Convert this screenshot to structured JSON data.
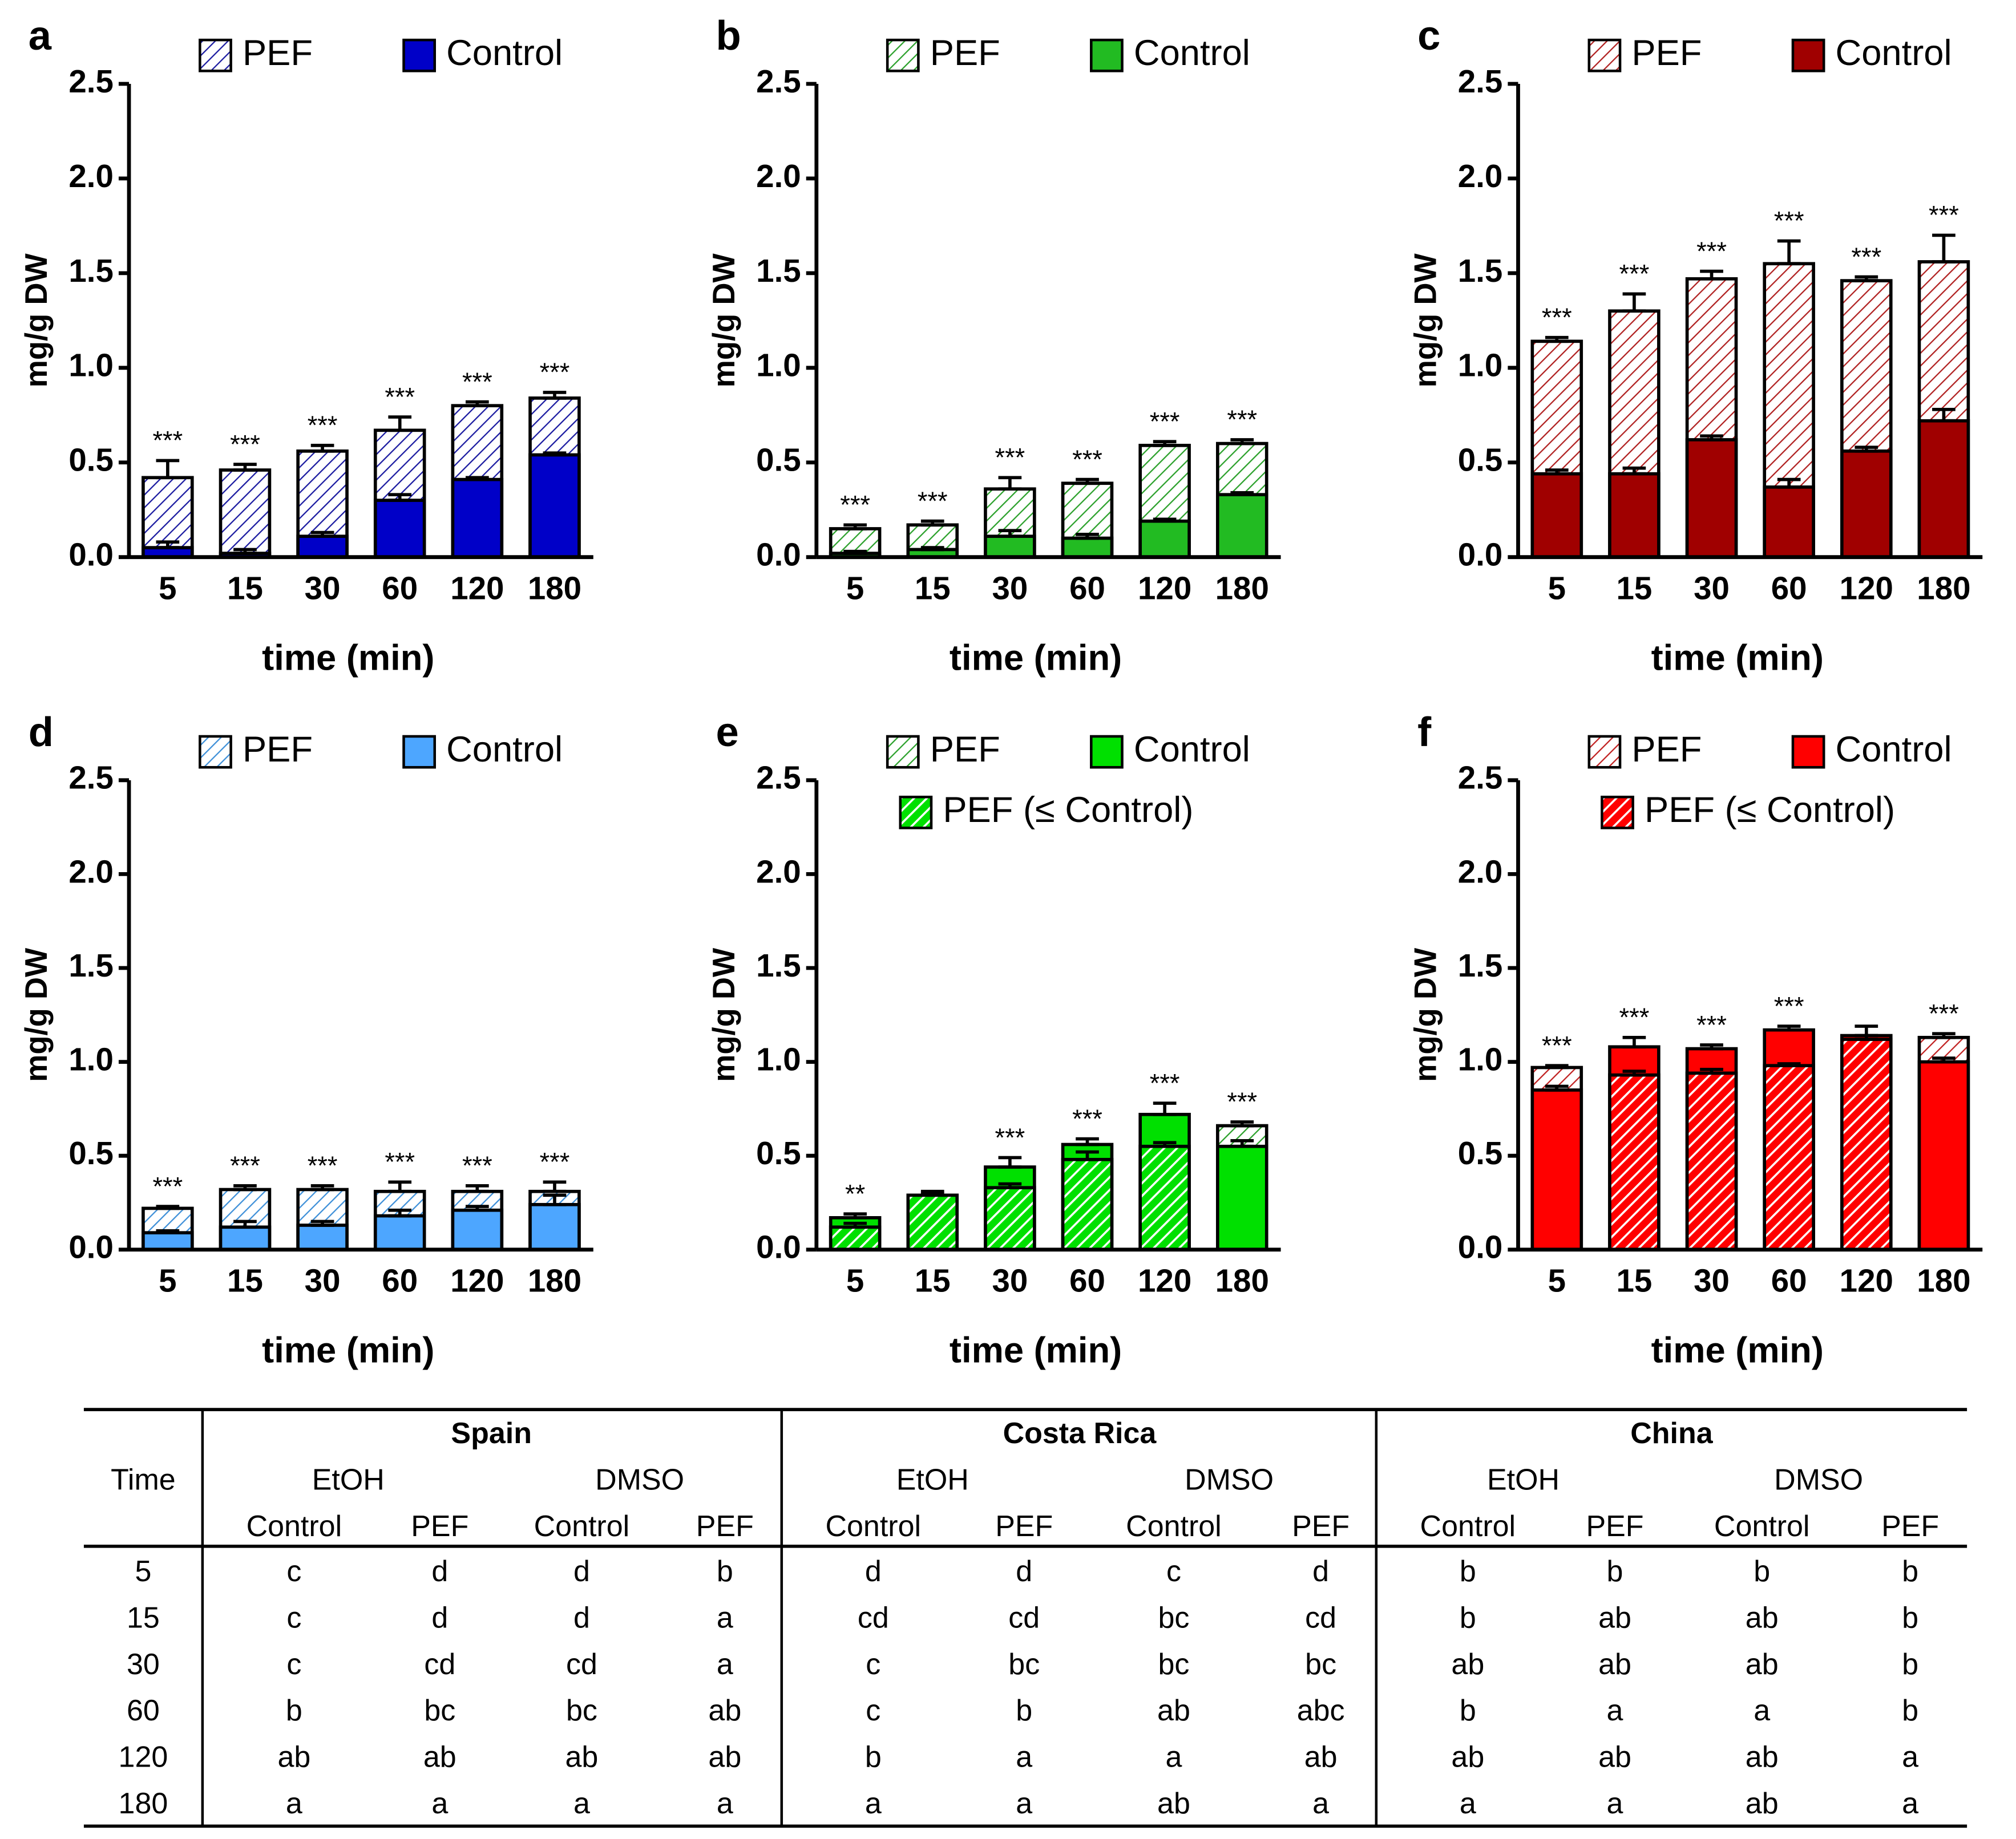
{
  "chart_data": [
    {
      "type": "bar",
      "label": "a",
      "ylabel": "mg/g DW",
      "xlabel": "time (min)",
      "categories": [
        "5",
        "15",
        "30",
        "60",
        "120",
        "180"
      ],
      "ylim": [
        0,
        2.5
      ],
      "yticks": [
        {
          "value": 0,
          "label": "0.0"
        },
        {
          "value": 0.5,
          "label": "0.5"
        },
        {
          "value": 1,
          "label": "1.0"
        },
        {
          "value": 1.5,
          "label": "1.5"
        },
        {
          "value": 2,
          "label": "2.0"
        },
        {
          "value": 2.5,
          "label": "2.5"
        }
      ],
      "series": [
        {
          "name": "PEF",
          "color": "#1a1aa0",
          "values": [
            0.42,
            0.46,
            0.56,
            0.67,
            0.8,
            0.84
          ],
          "errors": [
            0.09,
            0.03,
            0.03,
            0.07,
            0.02,
            0.03
          ]
        },
        {
          "name": "Control",
          "color": "#0000c8",
          "values": [
            0.05,
            0.02,
            0.11,
            0.3,
            0.41,
            0.54
          ],
          "errors": [
            0.03,
            0.02,
            0.02,
            0.03,
            0.01,
            0.01
          ]
        }
      ],
      "significance": [
        "***",
        "***",
        "***",
        "***",
        "***",
        "***"
      ]
    },
    {
      "type": "bar",
      "label": "b",
      "ylabel": "mg/g DW",
      "xlabel": "time (min)",
      "categories": [
        "5",
        "15",
        "30",
        "60",
        "120",
        "180"
      ],
      "ylim": [
        0,
        2.5
      ],
      "yticks": [
        {
          "value": 0,
          "label": "0.0"
        },
        {
          "value": 0.5,
          "label": "0.5"
        },
        {
          "value": 1,
          "label": "1.0"
        },
        {
          "value": 1.5,
          "label": "1.5"
        },
        {
          "value": 2,
          "label": "2.0"
        },
        {
          "value": 2.5,
          "label": "2.5"
        }
      ],
      "series": [
        {
          "name": "PEF",
          "color": "#2aa02a",
          "values": [
            0.15,
            0.17,
            0.36,
            0.39,
            0.59,
            0.6
          ],
          "errors": [
            0.02,
            0.02,
            0.06,
            0.02,
            0.02,
            0.02
          ]
        },
        {
          "name": "Control",
          "color": "#22bb22",
          "values": [
            0.02,
            0.04,
            0.11,
            0.1,
            0.19,
            0.33
          ],
          "errors": [
            0.01,
            0.01,
            0.03,
            0.02,
            0.01,
            0.01
          ]
        }
      ],
      "significance": [
        "***",
        "***",
        "***",
        "***",
        "***",
        "***"
      ]
    },
    {
      "type": "bar",
      "label": "c",
      "ylabel": "mg/g DW",
      "xlabel": "time (min)",
      "categories": [
        "5",
        "15",
        "30",
        "60",
        "120",
        "180"
      ],
      "ylim": [
        0,
        2.5
      ],
      "yticks": [
        {
          "value": 0,
          "label": "0.0"
        },
        {
          "value": 0.5,
          "label": "0.5"
        },
        {
          "value": 1,
          "label": "1.0"
        },
        {
          "value": 1.5,
          "label": "1.5"
        },
        {
          "value": 2,
          "label": "2.0"
        },
        {
          "value": 2.5,
          "label": "2.5"
        }
      ],
      "series": [
        {
          "name": "PEF",
          "color": "#b02020",
          "values": [
            1.14,
            1.3,
            1.47,
            1.55,
            1.46,
            1.56
          ],
          "errors": [
            0.02,
            0.09,
            0.04,
            0.12,
            0.02,
            0.14
          ]
        },
        {
          "name": "Control",
          "color": "#a00000",
          "values": [
            0.44,
            0.44,
            0.62,
            0.37,
            0.56,
            0.72
          ],
          "errors": [
            0.02,
            0.03,
            0.02,
            0.04,
            0.02,
            0.06
          ]
        }
      ],
      "significance": [
        "***",
        "***",
        "***",
        "***",
        "***",
        "***"
      ]
    },
    {
      "type": "bar",
      "label": "d",
      "ylabel": "mg/g DW",
      "xlabel": "time (min)",
      "categories": [
        "5",
        "15",
        "30",
        "60",
        "120",
        "180"
      ],
      "ylim": [
        0,
        2.5
      ],
      "yticks": [
        {
          "value": 0,
          "label": "0.0"
        },
        {
          "value": 0.5,
          "label": "0.5"
        },
        {
          "value": 1,
          "label": "1.0"
        },
        {
          "value": 1.5,
          "label": "1.5"
        },
        {
          "value": 2,
          "label": "2.0"
        },
        {
          "value": 2.5,
          "label": "2.5"
        }
      ],
      "series": [
        {
          "name": "PEF",
          "color": "#3d8fd8",
          "values": [
            0.22,
            0.32,
            0.32,
            0.31,
            0.31,
            0.31
          ],
          "errors": [
            0.01,
            0.02,
            0.02,
            0.05,
            0.03,
            0.05
          ]
        },
        {
          "name": "Control",
          "color": "#4da6ff",
          "values": [
            0.09,
            0.12,
            0.13,
            0.18,
            0.21,
            0.24
          ],
          "errors": [
            0.01,
            0.03,
            0.02,
            0.03,
            0.02,
            0.05
          ]
        }
      ],
      "significance": [
        "***",
        "***",
        "***",
        "***",
        "***",
        "***"
      ]
    },
    {
      "type": "bar",
      "label": "e",
      "ylabel": "mg/g DW",
      "xlabel": "time (min)",
      "categories": [
        "5",
        "15",
        "30",
        "60",
        "120",
        "180"
      ],
      "ylim": [
        0,
        2.5
      ],
      "yticks": [
        {
          "value": 0,
          "label": "0.0"
        },
        {
          "value": 0.5,
          "label": "0.5"
        },
        {
          "value": 1,
          "label": "1.0"
        },
        {
          "value": 1.5,
          "label": "1.5"
        },
        {
          "value": 2,
          "label": "2.0"
        },
        {
          "value": 2.5,
          "label": "2.5"
        }
      ],
      "series": [
        {
          "name": "PEF",
          "color": "#2aa02a",
          "values": [
            0.12,
            0.29,
            0.33,
            0.48,
            0.55,
            0.66
          ],
          "errors": [
            0.02,
            0.01,
            0.02,
            0.04,
            0.02,
            0.02
          ]
        },
        {
          "name": "Control",
          "color": "#00e000",
          "values": [
            0.17,
            0.29,
            0.44,
            0.56,
            0.72,
            0.55
          ],
          "errors": [
            0.02,
            0.02,
            0.05,
            0.03,
            0.06,
            0.03
          ]
        }
      ],
      "legend_extra": "PEF (≤ Control)",
      "significance": [
        "**",
        null,
        "***",
        "***",
        "***",
        "***"
      ]
    },
    {
      "type": "bar",
      "label": "f",
      "ylabel": "mg/g DW",
      "xlabel": "time (min)",
      "categories": [
        "5",
        "15",
        "30",
        "60",
        "120",
        "180"
      ],
      "ylim": [
        0,
        2.5
      ],
      "yticks": [
        {
          "value": 0,
          "label": "0.0"
        },
        {
          "value": 0.5,
          "label": "0.5"
        },
        {
          "value": 1,
          "label": "1.0"
        },
        {
          "value": 1.5,
          "label": "1.5"
        },
        {
          "value": 2,
          "label": "2.0"
        },
        {
          "value": 2.5,
          "label": "2.5"
        }
      ],
      "series": [
        {
          "name": "PEF",
          "color": "#c02020",
          "values": [
            0.97,
            0.93,
            0.94,
            0.98,
            1.12,
            1.13
          ],
          "errors": [
            0.01,
            0.02,
            0.02,
            0.01,
            0.02,
            0.02
          ]
        },
        {
          "name": "Control",
          "color": "#ff0000",
          "values": [
            0.85,
            1.08,
            1.07,
            1.17,
            1.14,
            1.0
          ],
          "errors": [
            0.02,
            0.05,
            0.02,
            0.02,
            0.05,
            0.02
          ]
        }
      ],
      "legend_extra": "PEF (≤ Control)",
      "significance": [
        "***",
        "***",
        "***",
        "***",
        null,
        "***"
      ]
    }
  ],
  "table": {
    "time_header": "Time",
    "groups": [
      "Spain",
      "Costa Rica",
      "China"
    ],
    "solvents": [
      "EtOH",
      "DMSO",
      "EtOH",
      "DMSO",
      "EtOH",
      "DMSO"
    ],
    "conditions": [
      "Control",
      "PEF",
      "Control",
      "PEF",
      "Control",
      "PEF",
      "Control",
      "PEF",
      "Control",
      "PEF",
      "Control",
      "PEF"
    ],
    "rows": [
      [
        "5",
        "c",
        "d",
        "d",
        "b",
        "d",
        "d",
        "c",
        "d",
        "b",
        "b",
        "b",
        "b"
      ],
      [
        "15",
        "c",
        "d",
        "d",
        "a",
        "cd",
        "cd",
        "bc",
        "cd",
        "b",
        "ab",
        "ab",
        "b"
      ],
      [
        "30",
        "c",
        "cd",
        "cd",
        "a",
        "c",
        "bc",
        "bc",
        "bc",
        "ab",
        "ab",
        "ab",
        "b"
      ],
      [
        "60",
        "b",
        "bc",
        "bc",
        "ab",
        "c",
        "b",
        "ab",
        "abc",
        "b",
        "a",
        "a",
        "b"
      ],
      [
        "120",
        "ab",
        "ab",
        "ab",
        "ab",
        "b",
        "a",
        "a",
        "ab",
        "ab",
        "ab",
        "ab",
        "a"
      ],
      [
        "180",
        "a",
        "a",
        "a",
        "a",
        "a",
        "a",
        "ab",
        "a",
        "a",
        "a",
        "ab",
        "a"
      ]
    ]
  }
}
